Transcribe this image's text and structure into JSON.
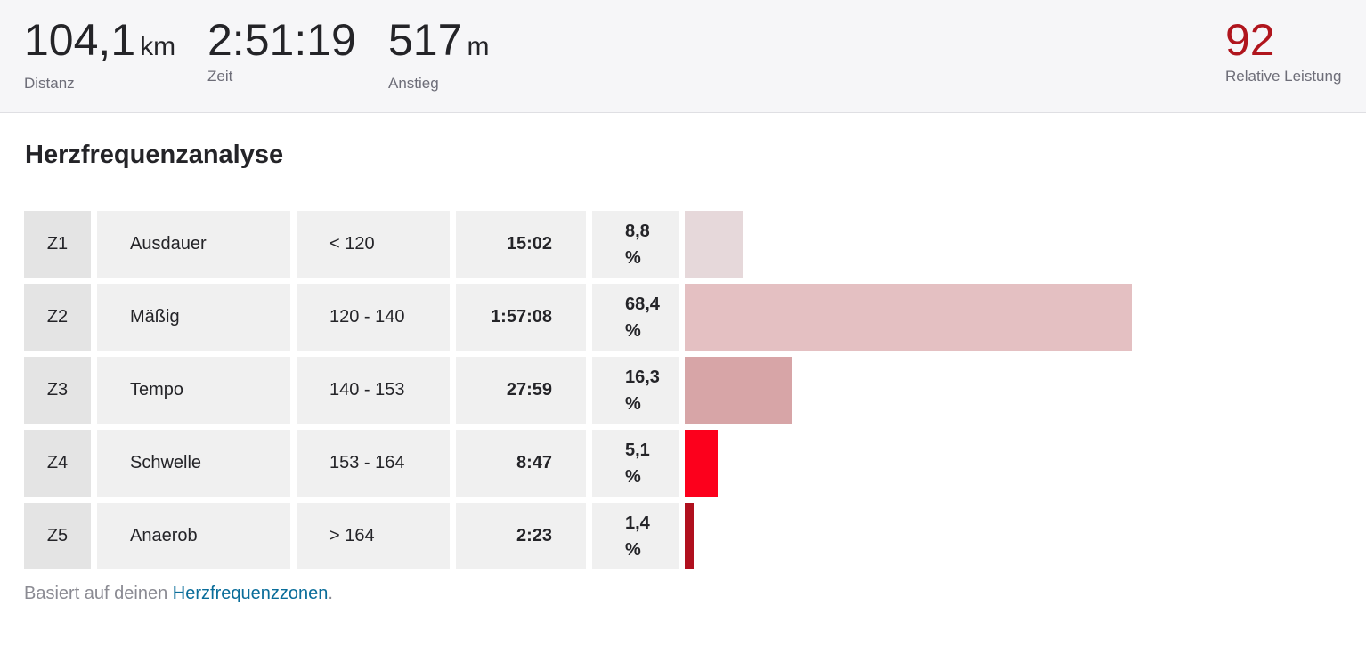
{
  "summary": {
    "distance": {
      "value": "104,1",
      "unit": "km",
      "label": "Distanz"
    },
    "time": {
      "value": "2:51:19",
      "label": "Zeit"
    },
    "elevation": {
      "value": "517",
      "unit": "m",
      "label": "Anstieg"
    },
    "relative_effort": {
      "value": "92",
      "label": "Relative Leistung"
    }
  },
  "analysis": {
    "title": "Herzfrequenzanalyse",
    "zones": [
      {
        "zone": "Z1",
        "name": "Ausdauer",
        "range": "< 120",
        "time": "15:02",
        "percent_text": "8,8 %",
        "percent": 8.8,
        "color": "#e6d8da"
      },
      {
        "zone": "Z2",
        "name": "Mäßig",
        "range": "120 - 140",
        "time": "1:57:08",
        "percent_text": "68,4 %",
        "percent": 68.4,
        "color": "#e4c0c2"
      },
      {
        "zone": "Z3",
        "name": "Tempo",
        "range": "140 - 153",
        "time": "27:59",
        "percent_text": "16,3 %",
        "percent": 16.3,
        "color": "#d7a5a7"
      },
      {
        "zone": "Z4",
        "name": "Schwelle",
        "range": "153 - 164",
        "time": "8:47",
        "percent_text": "5,1 %",
        "percent": 5.1,
        "color": "#fc001c"
      },
      {
        "zone": "Z5",
        "name": "Anaerob",
        "range": "> 164",
        "time": "2:23",
        "percent_text": "1,4 %",
        "percent": 1.4,
        "color": "#b0101e"
      }
    ],
    "footnote_prefix": "Basiert auf deinen ",
    "footnote_link": "Herzfrequenzzonen",
    "footnote_suffix": "."
  }
}
